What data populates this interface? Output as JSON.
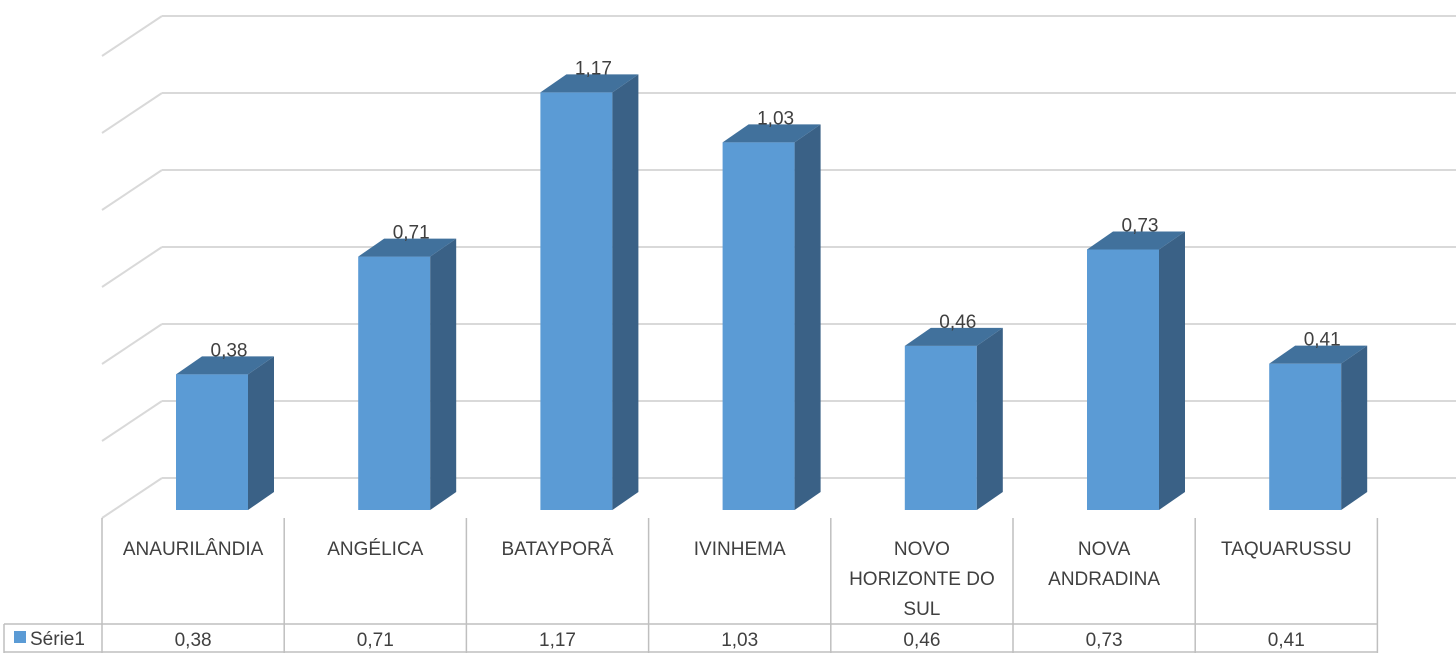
{
  "chart_data": {
    "type": "bar",
    "style": "3d-column-with-data-table",
    "categories": [
      [
        "ANAURILÂNDIA"
      ],
      [
        "ANGÉLICA"
      ],
      [
        "BATAYPORÃ"
      ],
      [
        "IVINHEMA"
      ],
      [
        "NOVO",
        "HORIZONTE DO",
        "SUL"
      ],
      [
        "NOVA",
        "ANDRADINA"
      ],
      [
        "TAQUARUSSU"
      ]
    ],
    "series": [
      {
        "name": "Série1",
        "values": [
          0.38,
          0.71,
          1.17,
          1.03,
          0.46,
          0.73,
          0.41
        ],
        "value_labels": [
          "0,38",
          "0,71",
          "1,17",
          "1,03",
          "0,46",
          "0,73",
          "0,41"
        ]
      }
    ],
    "ylim": [
      0,
      1.3
    ],
    "gridlines": true,
    "legend": "data-table-left",
    "colors": {
      "front": "#5b9bd5",
      "top": "#41719c",
      "side": "#3a6186",
      "grid": "#d9d9d9",
      "table": "#bfbfbf"
    }
  }
}
